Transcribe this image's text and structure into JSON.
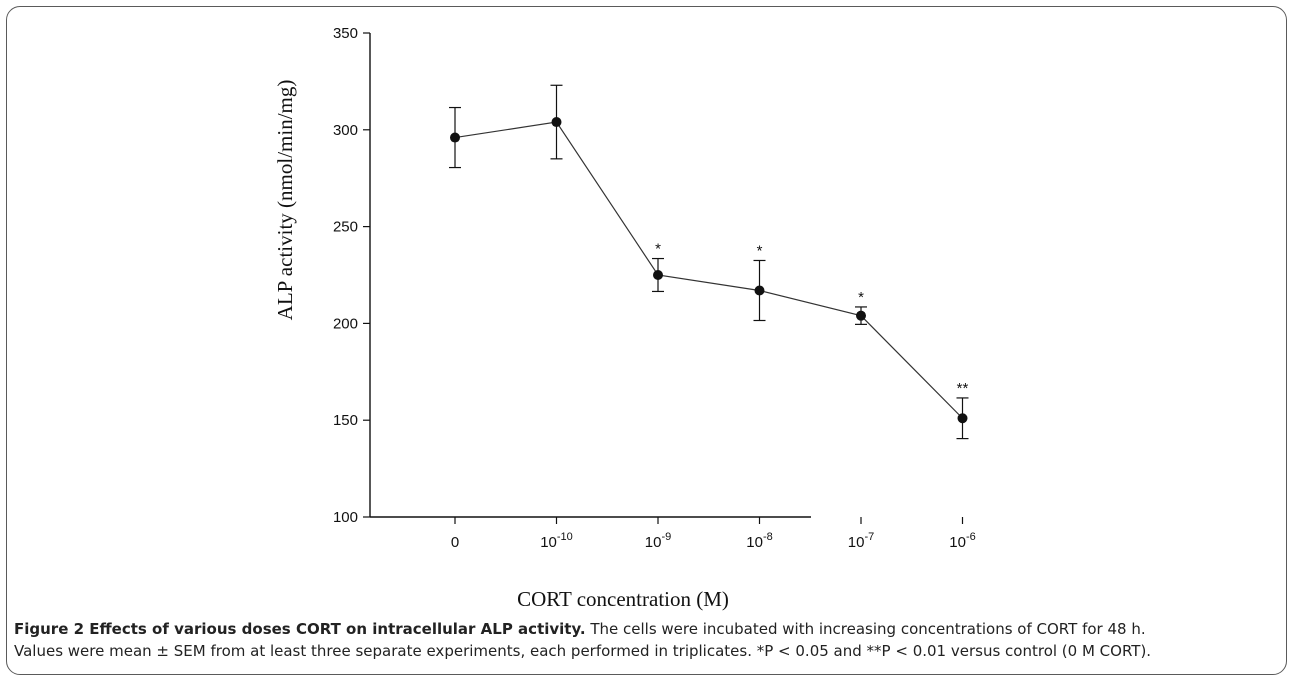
{
  "chart_data": {
    "type": "line",
    "xlabel": "CORT concentration (M)",
    "ylabel": "ALP activity (nmol/min/mg)",
    "ylim": [
      100,
      350
    ],
    "yticks": [
      "100",
      "150",
      "200",
      "250",
      "300",
      "350"
    ],
    "categories": [
      {
        "base": "0",
        "exp": ""
      },
      {
        "base": "10",
        "exp": "-10"
      },
      {
        "base": "10",
        "exp": "-9"
      },
      {
        "base": "10",
        "exp": "-8"
      },
      {
        "base": "10",
        "exp": "-7"
      },
      {
        "base": "10",
        "exp": "-6"
      }
    ],
    "series": [
      {
        "values": [
          296,
          304,
          225,
          217,
          204,
          151
        ],
        "errors": [
          15.5,
          19,
          8.5,
          15.5,
          4.5,
          10.5
        ],
        "annotations": [
          "",
          "",
          "*",
          "*",
          "*",
          "**"
        ]
      }
    ],
    "grid": false,
    "legend": "none"
  },
  "caption": {
    "title": "Figure 2 Effects of various doses CORT on intracellular ALP activity.",
    "line1": " The cells were incubated with increasing concentrations of CORT for 48 h.",
    "line2": "Values were mean ± SEM from at least three separate experiments, each performed in triplicates. *P < 0.05 and **P < 0.01 versus control (0 M CORT)."
  }
}
